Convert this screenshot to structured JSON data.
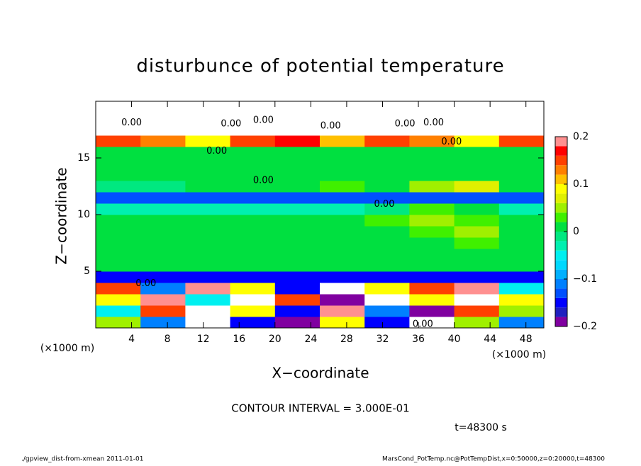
{
  "chart_data": {
    "type": "heatmap",
    "title": "disturbunce of potential temperature",
    "x_label": "X−coordinate",
    "y_label": "Z−coordinate",
    "x_unit": "(×1000 m)",
    "y_unit": "(×1000 m)",
    "xlim": [
      0,
      50
    ],
    "ylim": [
      0,
      20
    ],
    "xticks": [
      4,
      8,
      12,
      16,
      20,
      24,
      28,
      32,
      36,
      40,
      44,
      48
    ],
    "yticks": [
      5,
      10,
      15
    ],
    "x": [
      2.5,
      7.5,
      12.5,
      17.5,
      22.5,
      27.5,
      32.5,
      37.5,
      42.5,
      47.5
    ],
    "y": [
      0.5,
      1.5,
      2.5,
      3.5,
      4.5,
      5.5,
      6.5,
      7.5,
      8.5,
      9.5,
      10.5,
      11.5,
      12.5,
      13.5,
      14.5,
      15.5,
      16.5,
      17.5,
      18.5,
      19.5
    ],
    "values": [
      [
        0.05,
        -0.1,
        0.25,
        -0.15,
        -0.2,
        0.1,
        -0.15,
        -0.25,
        0.05,
        -0.1
      ],
      [
        -0.05,
        0.15,
        0.3,
        0.1,
        -0.15,
        0.2,
        -0.1,
        -0.2,
        0.15,
        0.05
      ],
      [
        0.1,
        0.2,
        -0.05,
        0.3,
        0.15,
        -0.2,
        0.25,
        0.1,
        0.3,
        0.1
      ],
      [
        0.15,
        -0.1,
        0.2,
        0.1,
        -0.15,
        0.25,
        0.1,
        0.15,
        0.2,
        -0.05
      ],
      [
        -0.15,
        -0.15,
        -0.15,
        -0.15,
        -0.15,
        -0.15,
        -0.15,
        -0.15,
        -0.15,
        -0.15
      ],
      [
        0.01,
        0.01,
        0.01,
        0.01,
        0.01,
        0.01,
        0.01,
        0.01,
        0.01,
        0.01
      ],
      [
        0.01,
        0.01,
        0.01,
        0.01,
        0.01,
        0.01,
        0.01,
        0.01,
        0.01,
        0.01
      ],
      [
        0.01,
        0.01,
        0.01,
        0.01,
        0.01,
        0.01,
        0.01,
        0.01,
        0.03,
        0.01
      ],
      [
        0.01,
        0.01,
        0.01,
        0.01,
        0.01,
        0.01,
        0.01,
        0.03,
        0.05,
        0.01
      ],
      [
        0.01,
        0.01,
        0.01,
        0.01,
        0.01,
        0.01,
        0.03,
        0.05,
        0.03,
        0.01
      ],
      [
        -0.03,
        -0.03,
        -0.03,
        -0.03,
        -0.03,
        -0.03,
        -0.01,
        0.03,
        0.01,
        -0.03
      ],
      [
        -0.13,
        -0.13,
        -0.13,
        -0.13,
        -0.13,
        -0.13,
        -0.13,
        -0.13,
        -0.13,
        -0.13
      ],
      [
        -0.01,
        -0.01,
        0.01,
        0.01,
        0.01,
        0.03,
        0.01,
        0.05,
        0.07,
        0.01
      ],
      [
        0.01,
        0.01,
        0.01,
        0.01,
        0.01,
        0.01,
        0.01,
        0.01,
        0.01,
        0.01
      ],
      [
        0.01,
        0.01,
        0.01,
        0.01,
        0.01,
        0.01,
        0.01,
        0.01,
        0.01,
        0.01
      ],
      [
        0.01,
        0.01,
        0.01,
        0.01,
        0.01,
        0.01,
        0.01,
        0.01,
        0.01,
        0.01
      ],
      [
        0.15,
        0.13,
        0.09,
        0.15,
        0.17,
        0.11,
        0.15,
        0.13,
        0.09,
        0.15
      ],
      [
        0.3,
        0.3,
        0.3,
        0.3,
        0.3,
        0.3,
        0.3,
        0.3,
        0.3,
        0.3
      ],
      [
        0.3,
        0.3,
        0.3,
        0.3,
        0.3,
        0.3,
        0.3,
        0.3,
        0.3,
        0.3
      ],
      [
        0.3,
        0.3,
        0.3,
        0.3,
        0.3,
        0.3,
        0.3,
        0.3,
        0.3,
        0.3
      ]
    ],
    "colorbar": {
      "levels": [
        -0.2,
        -0.18,
        -0.16,
        -0.14,
        -0.12,
        -0.1,
        -0.08,
        -0.06,
        -0.04,
        -0.02,
        0,
        0.02,
        0.04,
        0.06,
        0.08,
        0.1,
        0.12,
        0.14,
        0.16,
        0.18,
        0.2
      ],
      "colors": [
        "#8000a0",
        "#2020c0",
        "#0000ff",
        "#0050ff",
        "#0080ff",
        "#00b0ff",
        "#00d8ff",
        "#00f0f0",
        "#00f0b0",
        "#00e880",
        "#00e040",
        "#40f000",
        "#a0f000",
        "#e0f000",
        "#ffff00",
        "#ffc000",
        "#ff8000",
        "#ff4000",
        "#ff0000",
        "#ff9090"
      ],
      "ticks": [
        {
          "value": -0.2,
          "label": "−0.2"
        },
        {
          "value": -0.1,
          "label": "−0.1"
        },
        0,
        0.1,
        0.2
      ]
    },
    "contour_labels": [
      {
        "x": 4,
        "z": 18.1,
        "label": "0.00"
      },
      {
        "x": 15.1,
        "z": 18,
        "label": "0.00"
      },
      {
        "x": 18.7,
        "z": 18.3,
        "label": "0.00"
      },
      {
        "x": 26.2,
        "z": 17.8,
        "label": "0.00"
      },
      {
        "x": 34.5,
        "z": 18,
        "label": "0.00"
      },
      {
        "x": 37.7,
        "z": 18.1,
        "label": "0.00"
      },
      {
        "x": 39.7,
        "z": 16.4,
        "label": "0.00"
      },
      {
        "x": 13.5,
        "z": 15.6,
        "label": "0.00"
      },
      {
        "x": 18.7,
        "z": 13,
        "label": "0.00"
      },
      {
        "x": 32.2,
        "z": 10.9,
        "label": "0.00"
      },
      {
        "x": 5.6,
        "z": 3.9,
        "label": "0.00"
      },
      {
        "x": 36.5,
        "z": 0.3,
        "label": "0.00"
      }
    ],
    "contour_interval_text": "CONTOUR INTERVAL = 3.000E-01",
    "time_text": "t=48300 s",
    "footer_left": "./gpview_dist-from-xmean  2011-01-01",
    "footer_right": "MarsCond_PotTemp.nc@PotTempDist,x=0:50000,z=0:20000,t=48300"
  }
}
